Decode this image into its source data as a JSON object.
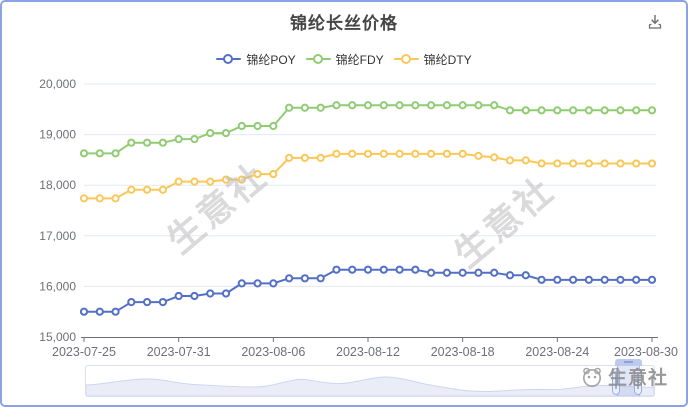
{
  "header": {
    "title": "锦纶长丝价格"
  },
  "toolbox": {
    "save_icon": "download-icon"
  },
  "legend": [
    {
      "label": "锦纶POY",
      "color": "#5470c6"
    },
    {
      "label": "锦纶FDY",
      "color": "#91cc75"
    },
    {
      "label": "锦纶DTY",
      "color": "#fac858"
    }
  ],
  "watermark": {
    "text": "生意社"
  },
  "logo": {
    "text": "生意社"
  },
  "chart_data": {
    "type": "line",
    "title": "锦纶长丝价格",
    "xlabel": "",
    "ylabel": "",
    "ylim": [
      15000,
      20000
    ],
    "y_tick_step": 1000,
    "y_tick_labels": [
      "15,000",
      "16,000",
      "17,000",
      "18,000",
      "19,000",
      "20,000"
    ],
    "x_tick_every": 6,
    "x_tick_labels": [
      "2023-07-25",
      "2023-07-31",
      "2023-08-06",
      "2023-08-12",
      "2023-08-18",
      "2023-08-24",
      "2023-08-30"
    ],
    "grid": true,
    "legend_position": "top",
    "marker": "hollow-circle",
    "categories": [
      "2023-07-25",
      "2023-07-26",
      "2023-07-27",
      "2023-07-28",
      "2023-07-29",
      "2023-07-30",
      "2023-07-31",
      "2023-08-01",
      "2023-08-02",
      "2023-08-03",
      "2023-08-04",
      "2023-08-05",
      "2023-08-06",
      "2023-08-07",
      "2023-08-08",
      "2023-08-09",
      "2023-08-10",
      "2023-08-11",
      "2023-08-12",
      "2023-08-13",
      "2023-08-14",
      "2023-08-15",
      "2023-08-16",
      "2023-08-17",
      "2023-08-18",
      "2023-08-19",
      "2023-08-20",
      "2023-08-21",
      "2023-08-22",
      "2023-08-23",
      "2023-08-24",
      "2023-08-25",
      "2023-08-26",
      "2023-08-27",
      "2023-08-28",
      "2023-08-29",
      "2023-08-30"
    ],
    "series": [
      {
        "name": "锦纶POY",
        "color": "#5470c6",
        "values": [
          15500,
          15500,
          15500,
          15690,
          15690,
          15690,
          15810,
          15810,
          15860,
          15860,
          16060,
          16060,
          16060,
          16160,
          16160,
          16160,
          16330,
          16330,
          16330,
          16330,
          16330,
          16330,
          16270,
          16270,
          16270,
          16270,
          16270,
          16220,
          16220,
          16130,
          16130,
          16130,
          16130,
          16130,
          16130,
          16130,
          16130
        ]
      },
      {
        "name": "锦纶FDY",
        "color": "#91cc75",
        "values": [
          18630,
          18630,
          18630,
          18840,
          18840,
          18840,
          18910,
          18910,
          19030,
          19030,
          19170,
          19170,
          19170,
          19530,
          19530,
          19530,
          19580,
          19580,
          19580,
          19580,
          19580,
          19580,
          19580,
          19580,
          19580,
          19580,
          19580,
          19480,
          19480,
          19480,
          19480,
          19480,
          19480,
          19480,
          19480,
          19480,
          19480
        ]
      },
      {
        "name": "锦纶DTY",
        "color": "#fac858",
        "values": [
          17740,
          17740,
          17740,
          17910,
          17910,
          17910,
          18070,
          18070,
          18070,
          18110,
          18110,
          18220,
          18220,
          18540,
          18540,
          18540,
          18620,
          18620,
          18620,
          18620,
          18620,
          18620,
          18620,
          18620,
          18620,
          18580,
          18550,
          18490,
          18490,
          18430,
          18430,
          18430,
          18430,
          18430,
          18430,
          18430,
          18430
        ]
      }
    ]
  }
}
